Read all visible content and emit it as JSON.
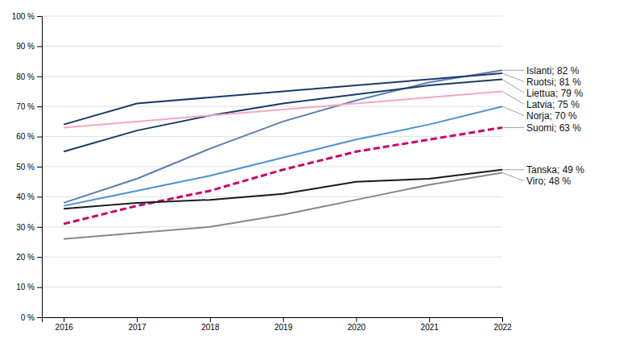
{
  "chart_data": {
    "type": "line",
    "x": [
      2016,
      2017,
      2018,
      2019,
      2020,
      2021,
      2022
    ],
    "xlim": [
      2015.7,
      2022.0
    ],
    "xticks": [
      2016,
      2017,
      2018,
      2019,
      2020,
      2021,
      2022
    ],
    "ylim": [
      0,
      100
    ],
    "yticks": [
      {
        "value": 0,
        "label": "0 %"
      },
      {
        "value": 10,
        "label": "10 %"
      },
      {
        "value": 20,
        "label": "20 %"
      },
      {
        "value": 30,
        "label": "30 %"
      },
      {
        "value": 40,
        "label": "40 %"
      },
      {
        "value": 50,
        "label": "50 %"
      },
      {
        "value": 60,
        "label": "60 %"
      },
      {
        "value": 70,
        "label": "70 %"
      },
      {
        "value": 80,
        "label": "80 %"
      },
      {
        "value": 90,
        "label": "90 %"
      },
      {
        "value": 100,
        "label": "100 %"
      }
    ],
    "grid": true,
    "series": [
      {
        "color": "#5b7db1",
        "line_style": "solid",
        "values": [
          38,
          46,
          56,
          65,
          72,
          78,
          82
        ]
      },
      {
        "color": "#1a3a6b",
        "line_style": "solid",
        "values": [
          64,
          71,
          73,
          75,
          77,
          79,
          81
        ]
      },
      {
        "color": "#1a3a6b",
        "line_style": "solid",
        "values": [
          55,
          62,
          67,
          71,
          74,
          77,
          79
        ]
      },
      {
        "color": "#f4a8c0",
        "line_style": "solid",
        "values": [
          63,
          65,
          67,
          69,
          71,
          73,
          75
        ]
      },
      {
        "color": "#4a90d9",
        "line_style": "solid",
        "values": [
          37,
          42,
          47,
          53,
          59,
          64,
          70
        ]
      },
      {
        "color": "#cc0066",
        "line_style": "dashed",
        "values": [
          31,
          37,
          42,
          49,
          55,
          59,
          63
        ]
      },
      {
        "color": "#1a1a1a",
        "line_style": "solid",
        "values": [
          36,
          38,
          39,
          41,
          45,
          46,
          49
        ]
      },
      {
        "color": "#888888",
        "line_style": "solid",
        "values": [
          26,
          28,
          30,
          34,
          39,
          44,
          48
        ]
      }
    ],
    "annotations": [
      {
        "text": "Islanti; 82 %",
        "x": 2022,
        "y": 82
      },
      {
        "text": "Ruotsi; 81 %",
        "x": 2022,
        "y": 81
      },
      {
        "text": "Liettua; 79 %",
        "x": 2022,
        "y": 79
      },
      {
        "text": "Latvia; 75 %",
        "x": 2022,
        "y": 75
      },
      {
        "text": "Norja; 70 %",
        "x": 2022,
        "y": 70
      },
      {
        "text": "Suomi; 63 %",
        "x": 2022,
        "y": 63
      },
      {
        "text": "Tanska; 49 %",
        "x": 2022,
        "y": 49
      },
      {
        "text": "Viro; 48 %",
        "x": 2022,
        "y": 48
      }
    ]
  }
}
